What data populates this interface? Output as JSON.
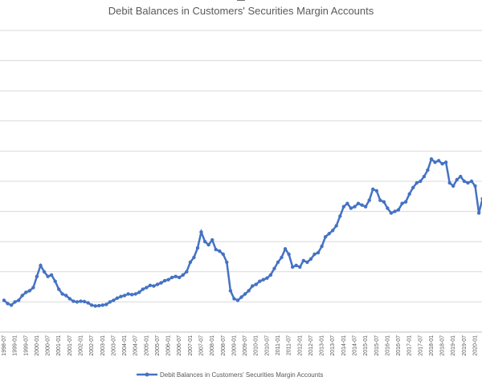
{
  "chart_data": {
    "type": "line",
    "title": "Debit Balances in Customers' Securities Margin Accounts",
    "xlabel": "",
    "ylabel": "",
    "grid": true,
    "legend_position": "bottom",
    "series_color": "#4472C4",
    "categories": [
      "1998-07",
      "1999-01",
      "1999-07",
      "2000-01",
      "2000-07",
      "2001-01",
      "2001-07",
      "2002-01",
      "2002-07",
      "2003-01",
      "2003-07",
      "2004-01",
      "2004-07",
      "2005-01",
      "2005-07",
      "2006-01",
      "2006-07",
      "2007-01",
      "2007-07",
      "2008-01",
      "2008-07",
      "2009-01",
      "2009-07",
      "2010-01",
      "2010-07",
      "2011-01",
      "2011-07",
      "2012-01",
      "2012-07",
      "2013-01",
      "2013-07",
      "2014-01",
      "2014-07",
      "2015-01",
      "2015-07",
      "2016-01",
      "2016-07",
      "2017-01",
      "2017-07",
      "2018-01",
      "2018-07",
      "2019-01",
      "2019-07",
      "2020-01",
      "2020-07"
    ],
    "series": [
      {
        "name": "Debit Balances in Customers' Securities Margin Accounts",
        "points": [
          [
            "1998-07",
            1.0
          ],
          [
            "1998-09",
            0.9
          ],
          [
            "1998-11",
            0.85
          ],
          [
            "1999-01",
            0.95
          ],
          [
            "1999-03",
            1.0
          ],
          [
            "1999-05",
            1.15
          ],
          [
            "1999-07",
            1.25
          ],
          [
            "1999-09",
            1.3
          ],
          [
            "1999-11",
            1.4
          ],
          [
            "2000-01",
            1.75
          ],
          [
            "2000-03",
            2.1
          ],
          [
            "2000-05",
            1.9
          ],
          [
            "2000-07",
            1.75
          ],
          [
            "2000-09",
            1.8
          ],
          [
            "2000-11",
            1.6
          ],
          [
            "2001-01",
            1.35
          ],
          [
            "2001-03",
            1.2
          ],
          [
            "2001-05",
            1.15
          ],
          [
            "2001-07",
            1.05
          ],
          [
            "2001-09",
            0.97
          ],
          [
            "2001-11",
            0.95
          ],
          [
            "2002-01",
            0.97
          ],
          [
            "2002-03",
            0.96
          ],
          [
            "2002-05",
            0.92
          ],
          [
            "2002-07",
            0.85
          ],
          [
            "2002-09",
            0.82
          ],
          [
            "2002-11",
            0.83
          ],
          [
            "2003-01",
            0.85
          ],
          [
            "2003-03",
            0.87
          ],
          [
            "2003-05",
            0.95
          ],
          [
            "2003-07",
            1.0
          ],
          [
            "2003-09",
            1.07
          ],
          [
            "2003-11",
            1.12
          ],
          [
            "2004-01",
            1.15
          ],
          [
            "2004-03",
            1.2
          ],
          [
            "2004-05",
            1.18
          ],
          [
            "2004-07",
            1.2
          ],
          [
            "2004-09",
            1.25
          ],
          [
            "2004-11",
            1.35
          ],
          [
            "2005-01",
            1.4
          ],
          [
            "2005-03",
            1.47
          ],
          [
            "2005-05",
            1.45
          ],
          [
            "2005-07",
            1.5
          ],
          [
            "2005-09",
            1.55
          ],
          [
            "2005-11",
            1.62
          ],
          [
            "2006-01",
            1.65
          ],
          [
            "2006-03",
            1.72
          ],
          [
            "2006-05",
            1.75
          ],
          [
            "2006-07",
            1.72
          ],
          [
            "2006-09",
            1.8
          ],
          [
            "2006-11",
            1.9
          ],
          [
            "2007-01",
            2.2
          ],
          [
            "2007-03",
            2.35
          ],
          [
            "2007-05",
            2.65
          ],
          [
            "2007-07",
            3.15
          ],
          [
            "2007-09",
            2.85
          ],
          [
            "2007-11",
            2.75
          ],
          [
            "2008-01",
            2.9
          ],
          [
            "2008-03",
            2.6
          ],
          [
            "2008-05",
            2.55
          ],
          [
            "2008-07",
            2.45
          ],
          [
            "2008-09",
            2.2
          ],
          [
            "2008-11",
            1.3
          ],
          [
            "2009-01",
            1.05
          ],
          [
            "2009-03",
            1.0
          ],
          [
            "2009-05",
            1.1
          ],
          [
            "2009-07",
            1.2
          ],
          [
            "2009-09",
            1.3
          ],
          [
            "2009-11",
            1.45
          ],
          [
            "2010-01",
            1.5
          ],
          [
            "2010-03",
            1.6
          ],
          [
            "2010-05",
            1.65
          ],
          [
            "2010-07",
            1.7
          ],
          [
            "2010-09",
            1.8
          ],
          [
            "2010-11",
            2.0
          ],
          [
            "2011-01",
            2.2
          ],
          [
            "2011-03",
            2.35
          ],
          [
            "2011-05",
            2.62
          ],
          [
            "2011-07",
            2.45
          ],
          [
            "2011-09",
            2.05
          ],
          [
            "2011-11",
            2.1
          ],
          [
            "2012-01",
            2.05
          ],
          [
            "2012-03",
            2.25
          ],
          [
            "2012-05",
            2.2
          ],
          [
            "2012-07",
            2.3
          ],
          [
            "2012-09",
            2.45
          ],
          [
            "2012-11",
            2.5
          ],
          [
            "2013-01",
            2.7
          ],
          [
            "2013-03",
            3.0
          ],
          [
            "2013-05",
            3.1
          ],
          [
            "2013-07",
            3.2
          ],
          [
            "2013-09",
            3.35
          ],
          [
            "2013-11",
            3.65
          ],
          [
            "2014-01",
            3.95
          ],
          [
            "2014-03",
            4.05
          ],
          [
            "2014-05",
            3.9
          ],
          [
            "2014-07",
            3.95
          ],
          [
            "2014-09",
            4.05
          ],
          [
            "2014-11",
            4.0
          ],
          [
            "2015-01",
            3.95
          ],
          [
            "2015-03",
            4.15
          ],
          [
            "2015-05",
            4.5
          ],
          [
            "2015-07",
            4.45
          ],
          [
            "2015-09",
            4.15
          ],
          [
            "2015-11",
            4.1
          ],
          [
            "2016-01",
            3.9
          ],
          [
            "2016-03",
            3.75
          ],
          [
            "2016-05",
            3.8
          ],
          [
            "2016-07",
            3.85
          ],
          [
            "2016-09",
            4.05
          ],
          [
            "2016-11",
            4.1
          ],
          [
            "2017-01",
            4.35
          ],
          [
            "2017-03",
            4.55
          ],
          [
            "2017-05",
            4.7
          ],
          [
            "2017-07",
            4.75
          ],
          [
            "2017-09",
            4.9
          ],
          [
            "2017-11",
            5.1
          ],
          [
            "2018-01",
            5.45
          ],
          [
            "2018-03",
            5.35
          ],
          [
            "2018-05",
            5.4
          ],
          [
            "2018-07",
            5.3
          ],
          [
            "2018-09",
            5.35
          ],
          [
            "2018-11",
            4.7
          ],
          [
            "2019-01",
            4.6
          ],
          [
            "2019-03",
            4.8
          ],
          [
            "2019-05",
            4.9
          ],
          [
            "2019-07",
            4.75
          ],
          [
            "2019-09",
            4.7
          ],
          [
            "2019-11",
            4.75
          ],
          [
            "2020-01",
            4.6
          ],
          [
            "2020-03",
            3.75
          ],
          [
            "2020-05",
            4.2
          ],
          [
            "2020-07",
            4.6
          ],
          [
            "2020-09",
            4.9
          ]
        ]
      }
    ],
    "ylim": [
      0,
      9.5
    ]
  }
}
